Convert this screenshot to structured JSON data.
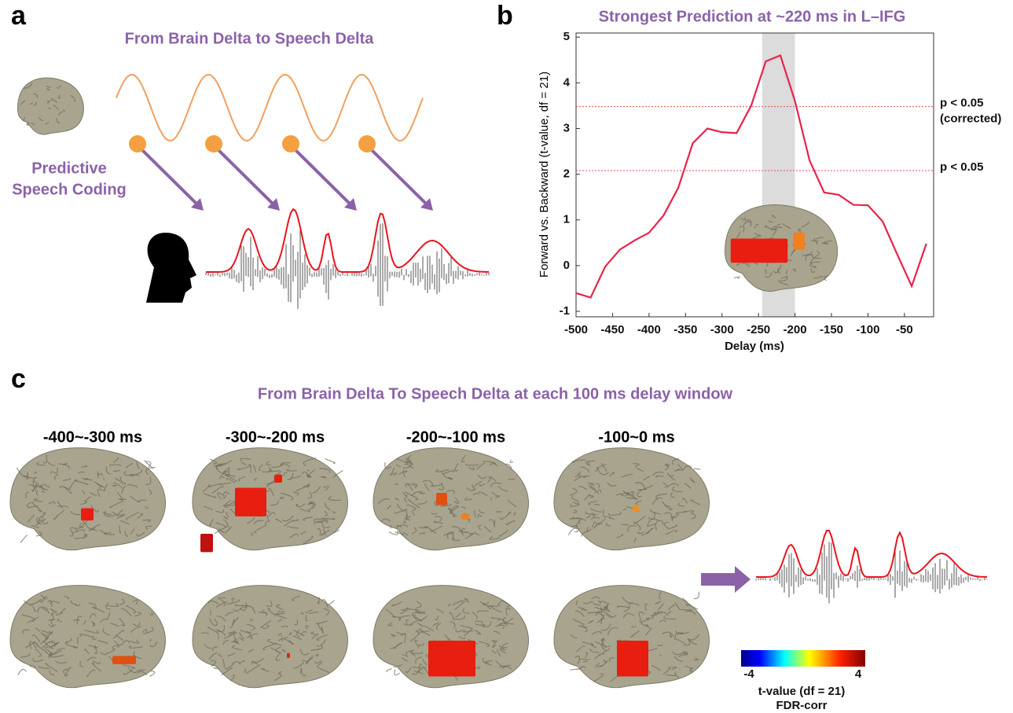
{
  "panel_labels": [
    "a",
    "b",
    "c"
  ],
  "panel_a": {
    "title": "From Brain Delta to Speech Delta",
    "caption_lines": [
      "Predictive",
      "Speech Coding"
    ]
  },
  "chart_data": {
    "type": "line",
    "title": "Strongest Prediction at ~220 ms in L–IFG",
    "x_label": "Delay (ms)",
    "y_label": "Forward vs. Backward (t-value,  df = 21)",
    "x": [
      -500,
      -480,
      -460,
      -440,
      -420,
      -400,
      -380,
      -360,
      -340,
      -320,
      -300,
      -280,
      -260,
      -240,
      -220,
      -200,
      -180,
      -160,
      -140,
      -120,
      -100,
      -80,
      -60,
      -40,
      -20
    ],
    "series": [
      {
        "name": "L-IFG",
        "color": "#e8234a",
        "values": [
          -0.6,
          -0.7,
          -0.02,
          0.35,
          0.55,
          0.72,
          1.1,
          1.7,
          2.68,
          3.0,
          2.92,
          2.9,
          3.5,
          4.47,
          4.6,
          3.6,
          2.3,
          1.6,
          1.55,
          1.33,
          1.32,
          0.97,
          0.25,
          -0.45,
          0.48
        ]
      }
    ],
    "xlim": [
      -500,
      -10
    ],
    "ylim": [
      -1.12,
      5.09
    ],
    "xticks": [
      -500,
      -450,
      -400,
      -350,
      -300,
      -250,
      -200,
      -150,
      -100,
      -50
    ],
    "yticks": [
      -1,
      0,
      1,
      2,
      3,
      4,
      5
    ],
    "highlight": [
      -245,
      -200
    ],
    "thresholds": [
      {
        "value": 3.48,
        "label_lines": [
          "p < 0.05",
          "(corrected)"
        ]
      },
      {
        "value": 2.08,
        "label_lines": [
          "p < 0.05"
        ]
      }
    ],
    "threshold_color": "#e05050"
  },
  "panel_c": {
    "title": "From Brain Delta To Speech Delta at each 100 ms delay window",
    "windows": [
      "-400~-300 ms",
      "-300~-200 ms",
      "-200~-100 ms",
      "-100~0 ms"
    ],
    "colorbar": {
      "min": -4,
      "max": 4,
      "label_lines": [
        "t-value (df = 21)",
        "FDR-corr"
      ]
    }
  }
}
